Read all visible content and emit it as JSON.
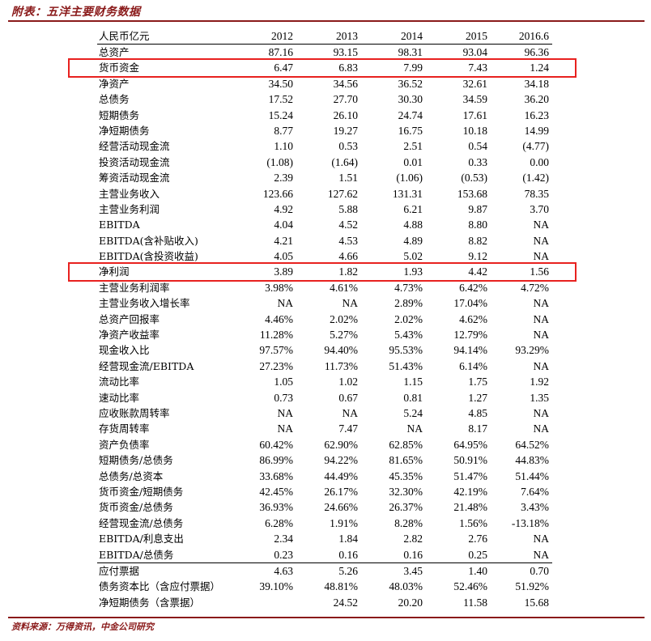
{
  "title": "附表：五洋主要财务数据",
  "source": "资料来源：万得资讯，中金公司研究",
  "header": {
    "label": "人民币亿元",
    "years": [
      "2012",
      "2013",
      "2014",
      "2015",
      "2016.6"
    ]
  },
  "rows": [
    {
      "label": "总资产",
      "values": [
        "87.16",
        "93.15",
        "98.31",
        "93.04",
        "96.36"
      ]
    },
    {
      "label": "货币资金",
      "values": [
        "6.47",
        "6.83",
        "7.99",
        "7.43",
        "1.24"
      ],
      "highlight": true
    },
    {
      "label": "净资产",
      "values": [
        "34.50",
        "34.56",
        "36.52",
        "32.61",
        "34.18"
      ]
    },
    {
      "label": "总债务",
      "values": [
        "17.52",
        "27.70",
        "30.30",
        "34.59",
        "36.20"
      ]
    },
    {
      "label": "短期债务",
      "values": [
        "15.24",
        "26.10",
        "24.74",
        "17.61",
        "16.23"
      ]
    },
    {
      "label": "净短期债务",
      "values": [
        "8.77",
        "19.27",
        "16.75",
        "10.18",
        "14.99"
      ]
    },
    {
      "label": "经营活动现金流",
      "values": [
        "1.10",
        "0.53",
        "2.51",
        "0.54",
        "(4.77)"
      ]
    },
    {
      "label": "投资活动现金流",
      "values": [
        "(1.08)",
        "(1.64)",
        "0.01",
        "0.33",
        "0.00"
      ]
    },
    {
      "label": "筹资活动现金流",
      "values": [
        "2.39",
        "1.51",
        "(1.06)",
        "(0.53)",
        "(1.42)"
      ]
    },
    {
      "label": "主营业务收入",
      "values": [
        "123.66",
        "127.62",
        "131.31",
        "153.68",
        "78.35"
      ]
    },
    {
      "label": "主营业务利润",
      "values": [
        "4.92",
        "5.88",
        "6.21",
        "9.87",
        "3.70"
      ]
    },
    {
      "label": "EBITDA",
      "values": [
        "4.04",
        "4.52",
        "4.88",
        "8.80",
        "NA"
      ]
    },
    {
      "label": "EBITDA(含补贴收入)",
      "values": [
        "4.21",
        "4.53",
        "4.89",
        "8.82",
        "NA"
      ]
    },
    {
      "label": "EBITDA(含投资收益)",
      "values": [
        "4.05",
        "4.66",
        "5.02",
        "9.12",
        "NA"
      ]
    },
    {
      "label": "净利润",
      "values": [
        "3.89",
        "1.82",
        "1.93",
        "4.42",
        "1.56"
      ],
      "highlight": true
    },
    {
      "label": "主营业务利润率",
      "values": [
        "3.98%",
        "4.61%",
        "4.73%",
        "6.42%",
        "4.72%"
      ]
    },
    {
      "label": "主营业务收入增长率",
      "values": [
        "NA",
        "NA",
        "2.89%",
        "17.04%",
        "NA"
      ]
    },
    {
      "label": "总资产回报率",
      "values": [
        "4.46%",
        "2.02%",
        "2.02%",
        "4.62%",
        "NA"
      ]
    },
    {
      "label": "净资产收益率",
      "values": [
        "11.28%",
        "5.27%",
        "5.43%",
        "12.79%",
        "NA"
      ]
    },
    {
      "label": "现金收入比",
      "values": [
        "97.57%",
        "94.40%",
        "95.53%",
        "94.14%",
        "93.29%"
      ]
    },
    {
      "label": "经营现金流/EBITDA",
      "values": [
        "27.23%",
        "11.73%",
        "51.43%",
        "6.14%",
        "NA"
      ]
    },
    {
      "label": "流动比率",
      "values": [
        "1.05",
        "1.02",
        "1.15",
        "1.75",
        "1.92"
      ]
    },
    {
      "label": "速动比率",
      "values": [
        "0.73",
        "0.67",
        "0.81",
        "1.27",
        "1.35"
      ]
    },
    {
      "label": "应收账款周转率",
      "values": [
        "NA",
        "NA",
        "5.24",
        "4.85",
        "NA"
      ]
    },
    {
      "label": "存货周转率",
      "values": [
        "NA",
        "7.47",
        "NA",
        "8.17",
        "NA"
      ]
    },
    {
      "label": "资产负债率",
      "values": [
        "60.42%",
        "62.90%",
        "62.85%",
        "64.95%",
        "64.52%"
      ]
    },
    {
      "label": "短期债务/总债务",
      "values": [
        "86.99%",
        "94.22%",
        "81.65%",
        "50.91%",
        "44.83%"
      ]
    },
    {
      "label": "总债务/总资本",
      "values": [
        "33.68%",
        "44.49%",
        "45.35%",
        "51.47%",
        "51.44%"
      ]
    },
    {
      "label": "货币资金/短期债务",
      "values": [
        "42.45%",
        "26.17%",
        "32.30%",
        "42.19%",
        "7.64%"
      ]
    },
    {
      "label": "货币资金/总债务",
      "values": [
        "36.93%",
        "24.66%",
        "26.37%",
        "21.48%",
        "3.43%"
      ]
    },
    {
      "label": "经营现金流/总债务",
      "values": [
        "6.28%",
        "1.91%",
        "8.28%",
        "1.56%",
        "-13.18%"
      ]
    },
    {
      "label": "EBITDA/利息支出",
      "values": [
        "2.34",
        "1.84",
        "2.82",
        "2.76",
        "NA"
      ]
    },
    {
      "label": "EBITDA/总债务",
      "values": [
        "0.23",
        "0.16",
        "0.16",
        "0.25",
        "NA"
      ],
      "separator": true
    },
    {
      "label": "应付票据",
      "values": [
        "4.63",
        "5.26",
        "3.45",
        "1.40",
        "0.70"
      ]
    },
    {
      "label": "债务资本比（含应付票据）",
      "values": [
        "39.10%",
        "48.81%",
        "48.03%",
        "52.46%",
        "51.92%"
      ]
    },
    {
      "label": "净短期债务（含票据）",
      "values": [
        "",
        "24.52",
        "20.20",
        "11.58",
        "15.68"
      ]
    }
  ],
  "colors": {
    "title": "#8a1a1a",
    "highlight_box": "#e8211f"
  }
}
